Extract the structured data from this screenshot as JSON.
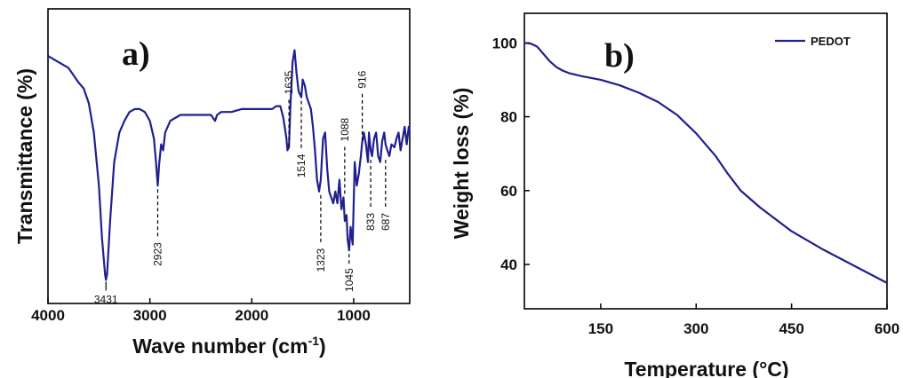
{
  "chart_data": [
    {
      "type": "line",
      "panel_label": "a)",
      "xlabel": "Wave number (cm",
      "xlabel_sup": "-1",
      "xlabel_end": ")",
      "ylabel": "Transmittance (%)",
      "xlim": [
        4000,
        450
      ],
      "ylim": [
        0,
        100
      ],
      "x_reversed": true,
      "y_ticks_shown": false,
      "xticks": [
        4000,
        3000,
        2000,
        1000
      ],
      "xtick_labels": [
        "4000",
        "3000",
        "2000",
        "1000"
      ],
      "line_color": "#1f1f8f",
      "series": [
        {
          "x": [
            4000,
            3900,
            3800,
            3700,
            3650,
            3600,
            3550,
            3500,
            3470,
            3440,
            3431,
            3420,
            3390,
            3350,
            3300,
            3250,
            3200,
            3150,
            3100,
            3050,
            3000,
            2960,
            2940,
            2923,
            2910,
            2890,
            2870,
            2850,
            2800,
            2700,
            2600,
            2500,
            2400,
            2360,
            2340,
            2300,
            2200,
            2100,
            2000,
            1900,
            1800,
            1760,
            1720,
            1690,
            1660,
            1650,
            1635,
            1620,
            1600,
            1580,
            1560,
            1540,
            1514,
            1500,
            1480,
            1460,
            1440,
            1420,
            1400,
            1380,
            1360,
            1340,
            1323,
            1300,
            1280,
            1260,
            1240,
            1220,
            1200,
            1180,
            1160,
            1140,
            1120,
            1100,
            1088,
            1070,
            1060,
            1045,
            1030,
            1010,
            990,
            970,
            950,
            930,
            916,
            900,
            880,
            860,
            850,
            833,
            820,
            800,
            780,
            760,
            740,
            720,
            700,
            687,
            670,
            650,
            630,
            600,
            580,
            560,
            540,
            520,
            500,
            480,
            460,
            450
          ],
          "y": [
            84,
            82,
            80,
            75,
            73,
            68,
            58,
            40,
            22,
            10,
            8,
            10,
            28,
            48,
            58,
            62,
            65,
            66,
            66,
            65,
            62,
            56,
            48,
            40,
            47,
            54,
            52,
            58,
            62,
            64,
            64,
            64,
            64,
            62,
            64,
            65,
            65,
            66,
            66,
            66,
            66,
            67,
            67,
            63,
            56,
            52,
            53,
            68,
            82,
            86,
            78,
            72,
            70,
            76,
            74,
            70,
            68,
            66,
            60,
            52,
            42,
            38,
            42,
            56,
            58,
            46,
            38,
            36,
            34,
            38,
            34,
            42,
            32,
            36,
            28,
            30,
            22,
            18,
            26,
            20,
            48,
            40,
            44,
            50,
            55,
            58,
            54,
            48,
            58,
            52,
            50,
            56,
            58,
            50,
            48,
            55,
            58,
            54,
            52,
            50,
            54,
            53,
            56,
            58,
            52,
            56,
            60,
            54,
            60,
            58
          ]
        }
      ],
      "annotations": [
        {
          "label": "3431",
          "x": 3431,
          "y": 8,
          "side": "below"
        },
        {
          "label": "2923",
          "x": 2923,
          "y": 40,
          "side": "below"
        },
        {
          "label": "1635",
          "x": 1635,
          "y": 52,
          "side": "above"
        },
        {
          "label": "1514",
          "x": 1514,
          "y": 70,
          "side": "below"
        },
        {
          "label": "1323",
          "x": 1323,
          "y": 38,
          "side": "below"
        },
        {
          "label": "1088",
          "x": 1088,
          "y": 36,
          "side": "above"
        },
        {
          "label": "1045",
          "x": 1045,
          "y": 18,
          "side": "below"
        },
        {
          "label": "916",
          "x": 916,
          "y": 54,
          "side": "above"
        },
        {
          "label": "833",
          "x": 833,
          "y": 50,
          "side": "below"
        },
        {
          "label": "687",
          "x": 687,
          "y": 50,
          "side": "below"
        }
      ]
    },
    {
      "type": "line",
      "panel_label": "b)",
      "xlabel": "Temperature (°C)",
      "ylabel": "Weight loss (%)",
      "xlim": [
        30,
        600
      ],
      "ylim": [
        28,
        108
      ],
      "xticks": [
        150,
        300,
        450,
        600
      ],
      "xtick_labels": [
        "150",
        "300",
        "450",
        "600"
      ],
      "yticks": [
        40,
        60,
        80,
        100
      ],
      "ytick_labels": [
        "40",
        "60",
        "80",
        "100"
      ],
      "legend": "top-right",
      "line_color": "#1f1f8f",
      "series": [
        {
          "name": "PEDOT",
          "x": [
            30,
            40,
            50,
            60,
            70,
            80,
            90,
            100,
            120,
            150,
            180,
            210,
            240,
            270,
            300,
            330,
            350,
            370,
            380,
            400,
            450,
            500,
            550,
            600
          ],
          "y": [
            100,
            99.8,
            99,
            97,
            95,
            93.5,
            92.5,
            91.8,
            91,
            90,
            88.5,
            86.5,
            84,
            80.5,
            75.5,
            69.5,
            64.5,
            60,
            58.5,
            55.5,
            49,
            44,
            39.5,
            35
          ]
        }
      ]
    }
  ]
}
